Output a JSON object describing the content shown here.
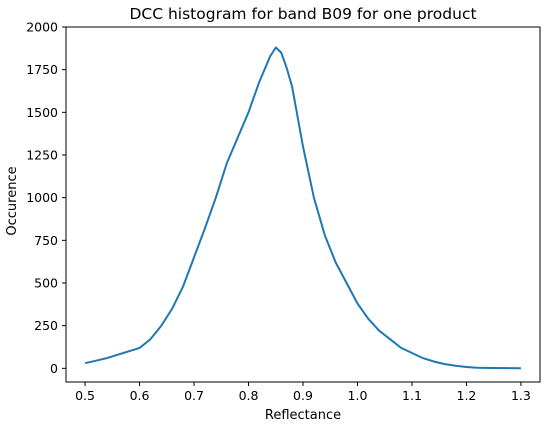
{
  "chart_data": {
    "type": "line",
    "title": "DCC histogram for band B09 for one product",
    "xlabel": "Reflectance",
    "ylabel": "Occurence",
    "xlim": [
      0.465,
      1.335
    ],
    "ylim": [
      -80,
      2000
    ],
    "xticks": [
      0.5,
      0.6,
      0.7,
      0.8,
      0.9,
      1.0,
      1.1,
      1.2,
      1.3
    ],
    "xtick_labels": [
      "0.5",
      "0.6",
      "0.7",
      "0.8",
      "0.9",
      "1.0",
      "1.1",
      "1.2",
      "1.3"
    ],
    "yticks": [
      0,
      250,
      500,
      750,
      1000,
      1250,
      1500,
      1750,
      2000
    ],
    "ytick_labels": [
      "0",
      "250",
      "500",
      "750",
      "1000",
      "1250",
      "1500",
      "1750",
      "2000"
    ],
    "grid": false,
    "color": "#1f77b4",
    "series": [
      {
        "x": [
          0.5,
          0.52,
          0.54,
          0.56,
          0.58,
          0.6,
          0.62,
          0.64,
          0.66,
          0.68,
          0.7,
          0.72,
          0.74,
          0.76,
          0.78,
          0.8,
          0.82,
          0.84,
          0.85,
          0.86,
          0.87,
          0.88,
          0.9,
          0.92,
          0.94,
          0.96,
          0.98,
          1.0,
          1.02,
          1.04,
          1.06,
          1.08,
          1.1,
          1.12,
          1.14,
          1.16,
          1.18,
          1.2,
          1.22,
          1.25,
          1.3
        ],
        "values": [
          30,
          45,
          60,
          80,
          100,
          120,
          170,
          250,
          350,
          480,
          650,
          820,
          1000,
          1200,
          1350,
          1500,
          1680,
          1830,
          1880,
          1850,
          1760,
          1650,
          1300,
          1000,
          780,
          620,
          500,
          380,
          290,
          220,
          170,
          120,
          90,
          60,
          40,
          25,
          15,
          8,
          4,
          2,
          0
        ]
      }
    ]
  }
}
